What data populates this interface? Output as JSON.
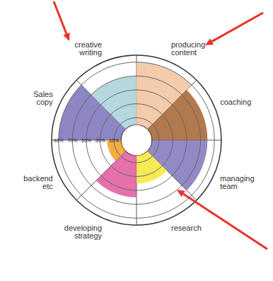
{
  "chart_data": {
    "type": "bar",
    "categories": [
      "Sales copy",
      "creative writing",
      "producing content",
      "coaching",
      "managing team",
      "research",
      "developing strategy",
      "backend etc"
    ],
    "values": [
      90,
      70,
      90,
      80,
      80,
      40,
      60,
      20
    ],
    "colors": [
      "#7a70b8",
      "#a9d0d8",
      "#f2c29c",
      "#a3622e",
      "#7f75ba",
      "#f5e63a",
      "#e0579b",
      "#f0a01e"
    ],
    "ylim": [
      0,
      100
    ],
    "yticks": [
      {
        "value": 10,
        "label": "10%"
      },
      {
        "value": 30,
        "label": "30%"
      },
      {
        "value": 50,
        "label": "50%"
      },
      {
        "value": 70,
        "label": "70%"
      },
      {
        "value": 90,
        "label": "90%"
      }
    ],
    "grid": true
  }
}
